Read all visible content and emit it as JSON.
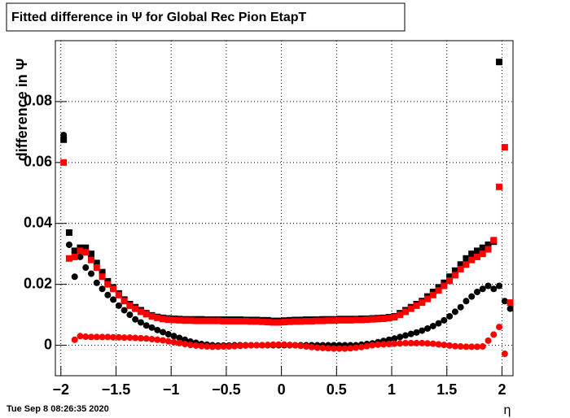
{
  "chart_data": {
    "type": "scatter",
    "title": "Fitted difference in  Ψ  for Global Rec Pion EtapT",
    "y_label": "difference in  Ψ",
    "x_label": "η",
    "timestamp": "Tue Sep  8 08:26:35 2020",
    "grid": true,
    "xlim": [
      -2.05,
      2.1
    ],
    "ylim": [
      -0.01,
      0.1
    ],
    "xticks": [
      {
        "value": -2,
        "label": "−2"
      },
      {
        "value": -1.5,
        "label": "−1.5"
      },
      {
        "value": -1,
        "label": "−1"
      },
      {
        "value": -0.5,
        "label": "−0.5"
      },
      0,
      0.5,
      1,
      1.5,
      2
    ],
    "yticks": [
      0,
      0.02,
      0.04,
      0.06,
      0.08
    ],
    "x": [
      -1.975,
      -1.925,
      -1.875,
      -1.825,
      -1.775,
      -1.725,
      -1.675,
      -1.625,
      -1.575,
      -1.525,
      -1.475,
      -1.425,
      -1.375,
      -1.325,
      -1.275,
      -1.225,
      -1.175,
      -1.125,
      -1.075,
      -1.025,
      -0.975,
      -0.925,
      -0.875,
      -0.825,
      -0.775,
      -0.725,
      -0.675,
      -0.625,
      -0.575,
      -0.525,
      -0.475,
      -0.425,
      -0.375,
      -0.325,
      -0.275,
      -0.225,
      -0.175,
      -0.125,
      -0.075,
      -0.025,
      0.025,
      0.075,
      0.125,
      0.175,
      0.225,
      0.275,
      0.325,
      0.375,
      0.425,
      0.475,
      0.525,
      0.575,
      0.625,
      0.675,
      0.725,
      0.775,
      0.825,
      0.875,
      0.925,
      0.975,
      1.025,
      1.075,
      1.125,
      1.175,
      1.225,
      1.275,
      1.325,
      1.375,
      1.425,
      1.475,
      1.525,
      1.575,
      1.625,
      1.675,
      1.725,
      1.775,
      1.825,
      1.875,
      1.925,
      1.975,
      2.025,
      2.075
    ],
    "series": [
      {
        "color": "#000000",
        "marker": "square",
        "values": [
          0.0675,
          0.037,
          0.031,
          0.032,
          0.032,
          0.03,
          0.027,
          0.024,
          0.021,
          0.019,
          0.017,
          0.015,
          0.0135,
          0.0125,
          0.0115,
          0.0105,
          0.0098,
          0.0093,
          0.009,
          0.0088,
          0.0087,
          0.0086,
          0.0085,
          0.0085,
          0.0085,
          0.0085,
          0.0084,
          0.0084,
          0.0084,
          0.0084,
          0.0084,
          0.0084,
          0.0084,
          0.0083,
          0.0083,
          0.0083,
          0.0082,
          0.0082,
          0.008,
          0.008,
          0.0081,
          0.0082,
          0.0083,
          0.0083,
          0.0084,
          0.0084,
          0.0084,
          0.0085,
          0.0085,
          0.0085,
          0.0086,
          0.0086,
          0.0086,
          0.0086,
          0.0087,
          0.0087,
          0.0088,
          0.0089,
          0.009,
          0.0092,
          0.0095,
          0.0105,
          0.0115,
          0.0125,
          0.0135,
          0.0145,
          0.016,
          0.0175,
          0.019,
          0.0205,
          0.0225,
          0.0245,
          0.0265,
          0.0285,
          0.03,
          0.031,
          0.032,
          0.033,
          0.034,
          0.093,
          null,
          null
        ]
      },
      {
        "color": "#000000",
        "marker": "circle",
        "values": [
          0.069,
          0.033,
          0.0225,
          0.029,
          0.0255,
          0.0235,
          0.0205,
          0.0185,
          0.0165,
          0.015,
          0.013,
          0.0115,
          0.01,
          0.0085,
          0.0075,
          0.0065,
          0.0058,
          0.005,
          0.0043,
          0.0036,
          0.003,
          0.0024,
          0.0018,
          0.0012,
          0.0008,
          0.0004,
          0.0002,
          0,
          -0.0001,
          -0.0001,
          -0.0001,
          0,
          0,
          0,
          0,
          0,
          0,
          0,
          0,
          0,
          0,
          0,
          0,
          0,
          0,
          0,
          0,
          0,
          0,
          0,
          0,
          0,
          0,
          0,
          0.0002,
          0.0004,
          0.0006,
          0.001,
          0.0014,
          0.0018,
          0.0022,
          0.0027,
          0.0032,
          0.0037,
          0.0042,
          0.0048,
          0.0055,
          0.0063,
          0.0072,
          0.0082,
          0.0095,
          0.011,
          0.0125,
          0.0145,
          0.016,
          0.0175,
          0.0185,
          0.0195,
          0.0185,
          0.0195,
          0.0145,
          0.012
        ]
      },
      {
        "color": "#ff0000",
        "marker": "square",
        "values": [
          0.06,
          0.0285,
          0.029,
          0.031,
          0.0305,
          0.028,
          0.0255,
          0.0225,
          0.02,
          0.0185,
          0.0165,
          0.0145,
          0.013,
          0.012,
          0.011,
          0.0102,
          0.0095,
          0.009,
          0.0086,
          0.0084,
          0.0083,
          0.0082,
          0.0081,
          0.0081,
          0.008,
          0.008,
          0.008,
          0.008,
          0.008,
          0.0079,
          0.0079,
          0.0079,
          0.0079,
          0.0079,
          0.0078,
          0.0078,
          0.0077,
          0.0076,
          0.0075,
          0.0075,
          0.0076,
          0.0077,
          0.0078,
          0.0078,
          0.0079,
          0.0079,
          0.008,
          0.008,
          0.0081,
          0.0081,
          0.0082,
          0.0082,
          0.0082,
          0.0083,
          0.0083,
          0.0084,
          0.0085,
          0.0086,
          0.0087,
          0.0089,
          0.0092,
          0.01,
          0.011,
          0.012,
          0.013,
          0.014,
          0.0152,
          0.0165,
          0.018,
          0.0195,
          0.0212,
          0.023,
          0.025,
          0.0265,
          0.028,
          0.029,
          0.03,
          0.0315,
          0.0345,
          0.052,
          0.065,
          0.014
        ]
      },
      {
        "color": "#ff0000",
        "marker": "circle",
        "values": [
          null,
          null,
          0.0018,
          0.003,
          0.0028,
          0.0027,
          0.0027,
          0.0027,
          0.0027,
          0.0026,
          0.0026,
          0.0025,
          0.0025,
          0.0024,
          0.0023,
          0.0022,
          0.002,
          0.0018,
          0.0016,
          0.0013,
          0.001,
          0.0007,
          0.0004,
          0.0001,
          -0.0001,
          -0.0003,
          -0.0004,
          -0.0005,
          -0.0005,
          -0.0004,
          -0.0004,
          -0.0003,
          -0.0002,
          -0.0001,
          0,
          0,
          0,
          0.0001,
          0.0002,
          0.0002,
          0.0002,
          0.0001,
          0,
          -0.0002,
          -0.0004,
          -0.0006,
          -0.0008,
          -0.0009,
          -0.001,
          -0.0011,
          -0.0011,
          -0.0011,
          -0.001,
          -0.0008,
          -0.0006,
          -0.0003,
          0,
          0.0002,
          0.0003,
          0.0004,
          0.0005,
          0.0006,
          0.0007,
          0.0007,
          0.0007,
          0.0007,
          0.0006,
          0.0005,
          0.0003,
          0.0001,
          -0.0001,
          -0.0003,
          -0.0004,
          -0.0005,
          -0.0005,
          -0.0005,
          -0.0004,
          0.0015,
          0.0035,
          0.006,
          -0.0028,
          null
        ]
      }
    ]
  }
}
